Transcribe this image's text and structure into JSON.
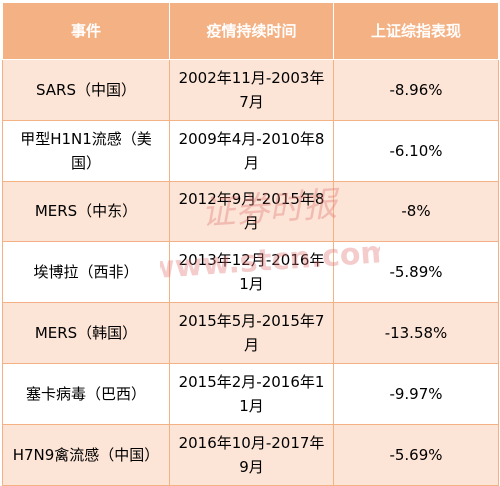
{
  "table": {
    "headers": [
      "事件",
      "疫情持续时间",
      "上证综指表现"
    ],
    "rows": [
      {
        "event": "SARS（中国）",
        "duration": "2002年11月-2003年7月",
        "performance": "-8.96%"
      },
      {
        "event": "甲型H1N1流感（美国）",
        "duration": "2009年4月-2010年8月",
        "performance": "-6.10%"
      },
      {
        "event": "MERS（中东）",
        "duration": "2012年9月-2015年8月",
        "performance": "-8%"
      },
      {
        "event": "埃博拉（西非）",
        "duration": "2013年12月-2016年1月",
        "performance": "-5.89%"
      },
      {
        "event": "MERS（韩国）",
        "duration": "2015年5月-2015年7月",
        "performance": "-13.58%"
      },
      {
        "event": "塞卡病毒（巴西）",
        "duration": "2015年2月-2016年11月",
        "performance": "-9.97%"
      },
      {
        "event": "H7N9禽流感（中国）",
        "duration": "2016年10月-2017年9月",
        "performance": "-5.69%"
      }
    ]
  },
  "watermark": {
    "line1": "证券时报",
    "line2": "www.stcn.com",
    "color": "#e07070"
  },
  "colors": {
    "header_bg": "#f4b183",
    "stripe_bg": "#fce4d6",
    "header_text": "#ffffff"
  }
}
